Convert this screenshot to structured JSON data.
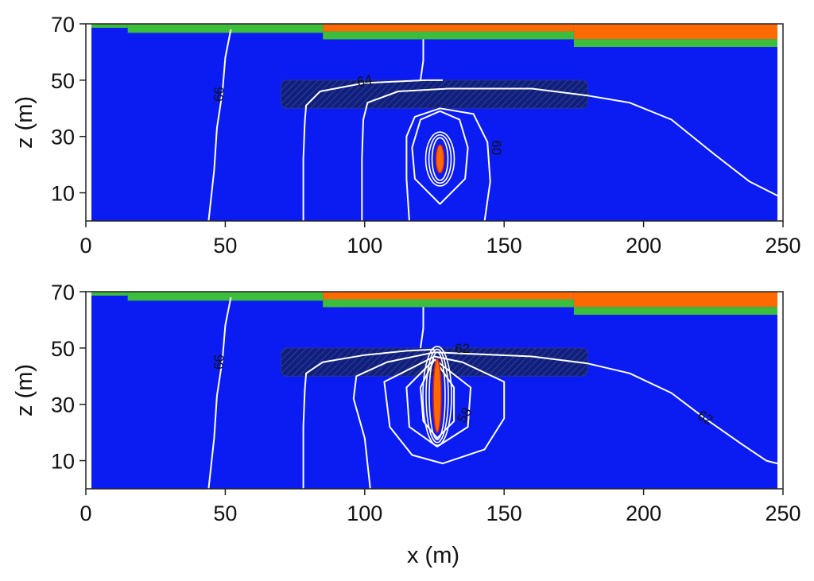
{
  "chart_data": [
    {
      "type": "contour",
      "panel": "top",
      "xlabel": "",
      "ylabel": "z (m)",
      "xlim": [
        0,
        250
      ],
      "ylim": [
        0,
        70
      ],
      "xticks": [
        "0",
        "50",
        "100",
        "150",
        "200",
        "250"
      ],
      "yticks": [
        "10",
        "30",
        "50",
        "70"
      ],
      "colors": {
        "field": "#0a1cf2",
        "orange_layer": "#ff6a00",
        "green_layer": "#3cbd3c",
        "contour": "#ffffff",
        "zone": "#101f7a"
      },
      "layers": [
        {
          "name": "green",
          "segments": [
            [
              2,
              15,
              68.6
            ],
            [
              15,
              85,
              66.8
            ],
            [
              85,
              175,
              64.5
            ],
            [
              175,
              248,
              61.8
            ]
          ]
        },
        {
          "name": "orange",
          "segments": [
            [
              85,
              175,
              67.3
            ],
            [
              175,
              248,
              64.6
            ]
          ]
        }
      ],
      "hatched_zone": {
        "x": [
          70,
          180
        ],
        "z": [
          40,
          50
        ]
      },
      "contour_lines": [
        {
          "label": "66",
          "points": [
            [
              44,
              0
            ],
            [
              46,
              18
            ],
            [
              47,
              33
            ],
            [
              49,
              46
            ],
            [
              50,
              58
            ],
            [
              52,
              68
            ]
          ]
        },
        {
          "label": "",
          "points": [
            [
              78,
              0
            ],
            [
              78,
              22
            ],
            [
              78.5,
              35
            ],
            [
              79,
              41
            ],
            [
              84,
              46
            ],
            [
              100,
              49
            ],
            [
              122,
              50
            ],
            [
              128,
              50
            ]
          ]
        },
        {
          "label": "64",
          "points": [
            [
              99,
              0
            ],
            [
              99,
              22
            ],
            [
              99.5,
              36
            ],
            [
              101,
              42
            ],
            [
              112,
              46
            ],
            [
              130,
              47
            ],
            [
              160,
              47
            ],
            [
              180,
              44.5
            ],
            [
              195,
              42
            ],
            [
              210,
              36
            ],
            [
              225,
              24
            ],
            [
              238,
              14
            ],
            [
              248,
              9
            ]
          ]
        },
        {
          "label": "",
          "points": [
            [
              120,
              50
            ],
            [
              121,
              57
            ],
            [
              121,
              64.5
            ]
          ]
        },
        {
          "label": "60",
          "points": [
            [
              116,
              0
            ],
            [
              115,
              15
            ],
            [
              115,
              30
            ],
            [
              118,
              37
            ],
            [
              127,
              40
            ],
            [
              139,
              38
            ],
            [
              144,
              28
            ],
            [
              145,
              14
            ],
            [
              143,
              0
            ]
          ]
        },
        {
          "label": "",
          "points": [
            [
              127,
              39
            ],
            [
              134,
              36
            ],
            [
              137,
              26
            ],
            [
              136,
              15
            ],
            [
              127,
              6
            ],
            [
              118,
              15
            ],
            [
              117,
              26
            ],
            [
              120,
              36
            ],
            [
              127,
              39
            ]
          ]
        }
      ],
      "contour_label_positions": [
        {
          "text": "66",
          "x": 48,
          "z": 45,
          "angle": -88
        },
        {
          "text": "64",
          "x": 100,
          "z": 49.5,
          "angle": -12
        },
        {
          "text": "60",
          "x": 147,
          "z": 26,
          "angle": 90
        }
      ],
      "hotspot": {
        "x": 127,
        "z": [
          17,
          27
        ]
      }
    },
    {
      "type": "contour",
      "panel": "bottom",
      "xlabel": "x (m)",
      "ylabel": "z (m)",
      "xlim": [
        0,
        250
      ],
      "ylim": [
        0,
        70
      ],
      "xticks": [
        "0",
        "50",
        "100",
        "150",
        "200",
        "250"
      ],
      "yticks": [
        "10",
        "30",
        "50",
        "70"
      ],
      "colors": {
        "field": "#0a1cf2",
        "orange_layer": "#ff6a00",
        "green_layer": "#3cbd3c",
        "contour": "#ffffff",
        "zone": "#101f7a"
      },
      "layers": [
        {
          "name": "green",
          "segments": [
            [
              2,
              15,
              68.6
            ],
            [
              15,
              85,
              66.8
            ],
            [
              85,
              175,
              64.5
            ],
            [
              175,
              248,
              61.8
            ]
          ]
        },
        {
          "name": "orange",
          "segments": [
            [
              85,
              175,
              67.3
            ],
            [
              175,
              248,
              64.6
            ]
          ]
        }
      ],
      "hatched_zone": {
        "x": [
          70,
          180
        ],
        "z": [
          40,
          50
        ]
      },
      "contour_lines": [
        {
          "label": "66",
          "points": [
            [
              44,
              0
            ],
            [
              46,
              18
            ],
            [
              47,
              33
            ],
            [
              49,
              46
            ],
            [
              50,
              58
            ],
            [
              52,
              68
            ]
          ]
        },
        {
          "label": "",
          "points": [
            [
              78,
              0
            ],
            [
              78,
              22
            ],
            [
              78.5,
              35
            ],
            [
              79,
              41
            ],
            [
              85,
              45
            ],
            [
              100,
              47.5
            ],
            [
              115,
              49
            ],
            [
              125,
              49.5
            ]
          ]
        },
        {
          "label": "62",
          "points": [
            [
              102,
              0
            ],
            [
              100,
              18
            ],
            [
              96,
              32
            ],
            [
              97,
              40
            ],
            [
              108,
              45
            ],
            [
              125,
              48.5
            ],
            [
              160,
              47
            ],
            [
              180,
              44.5
            ],
            [
              195,
              41
            ],
            [
              210,
              34
            ],
            [
              222,
              25
            ],
            [
              235,
              16
            ],
            [
              244,
              10
            ],
            [
              248,
              9
            ]
          ]
        },
        {
          "label": "",
          "points": [
            [
              120,
              50
            ],
            [
              121,
              57
            ],
            [
              121,
              64.5
            ]
          ]
        },
        {
          "label": "58",
          "points": [
            [
              125,
              47
            ],
            [
              107,
              38
            ],
            [
              109,
              22
            ],
            [
              117,
              12
            ],
            [
              128,
              9
            ],
            [
              143,
              14
            ],
            [
              150,
              25
            ],
            [
              150,
              38
            ],
            [
              135,
              45
            ],
            [
              125,
              47
            ]
          ]
        },
        {
          "label": "",
          "points": [
            [
              125,
              46
            ],
            [
              115,
              36
            ],
            [
              116,
              22
            ],
            [
              126,
              15
            ],
            [
              137,
              22
            ],
            [
              138,
              36
            ],
            [
              125,
              46
            ]
          ]
        },
        {
          "label": "",
          "points": [
            [
              125,
              46
            ],
            [
              120,
              36
            ],
            [
              121,
              24
            ],
            [
              126,
              18
            ],
            [
              132,
              24
            ],
            [
              132,
              36
            ],
            [
              125,
              46
            ]
          ]
        }
      ],
      "contour_label_positions": [
        {
          "text": "66",
          "x": 48,
          "z": 45,
          "angle": -88
        },
        {
          "text": "62",
          "x": 135,
          "z": 49.5,
          "angle": 0
        },
        {
          "text": "58",
          "x": 136,
          "z": 26,
          "angle": -60
        },
        {
          "text": "62",
          "x": 222,
          "z": 25,
          "angle": 30
        }
      ],
      "hotspot": {
        "x": 126,
        "z": [
          20,
          46
        ]
      }
    }
  ]
}
